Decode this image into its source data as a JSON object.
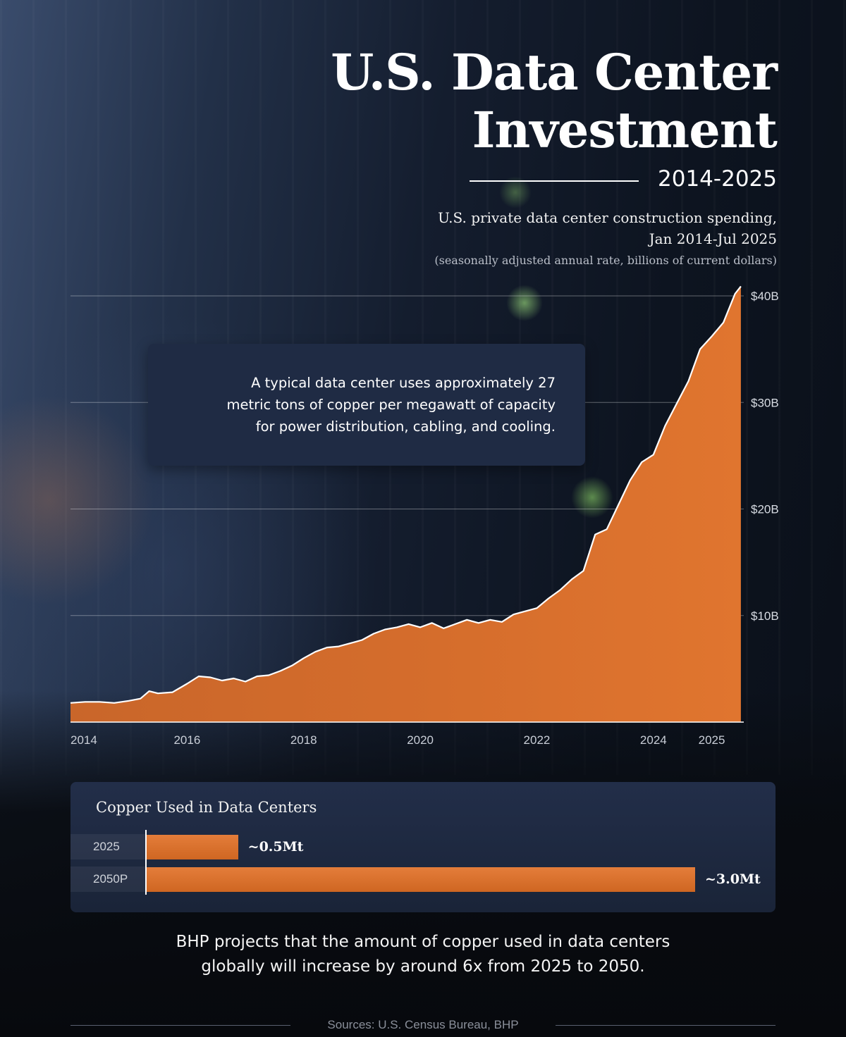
{
  "header": {
    "title_line1": "U.S. Data Center",
    "title_line2": "Investment",
    "period": "2014-2025",
    "subtitle_line1": "U.S. private data center construction spending,",
    "subtitle_line2": "Jan 2014-Jul 2025",
    "subtitle_note": "(seasonally adjusted annual rate, billions of current dollars)"
  },
  "callout": {
    "line1": "A typical data center uses approximately 27",
    "line2": "metric tons of copper per megawatt of capacity",
    "line3": "for power distribution, cabling, and cooling."
  },
  "chart_data": [
    {
      "type": "area",
      "title": "U.S. private data center construction spending, Jan 2014-Jul 2025",
      "ylabel": "",
      "xlabel": "",
      "x_range": [
        2014.0,
        2025.55
      ],
      "ylim": [
        0,
        40
      ],
      "yticks": [
        {
          "value": 10,
          "label": "$10B"
        },
        {
          "value": 20,
          "label": "$20B"
        },
        {
          "value": 30,
          "label": "$30B"
        },
        {
          "value": 40,
          "label": "$40B"
        }
      ],
      "xticks": [
        {
          "value": 2014,
          "label": "2014"
        },
        {
          "value": 2016,
          "label": "2016"
        },
        {
          "value": 2018,
          "label": "2018"
        },
        {
          "value": 2020,
          "label": "2020"
        },
        {
          "value": 2022,
          "label": "2022"
        },
        {
          "value": 2024,
          "label": "2024"
        },
        {
          "value": 2025,
          "label": "2025"
        }
      ],
      "gridlines": "horizontal",
      "color": "#d06a2a",
      "series": [
        {
          "x": [
            2014.0,
            2014.25,
            2014.5,
            2014.75,
            2015.0,
            2015.2,
            2015.35,
            2015.5,
            2015.75,
            2016.0,
            2016.2,
            2016.4,
            2016.6,
            2016.8,
            2017.0,
            2017.2,
            2017.4,
            2017.6,
            2017.8,
            2018.0,
            2018.2,
            2018.4,
            2018.6,
            2018.8,
            2019.0,
            2019.2,
            2019.4,
            2019.6,
            2019.8,
            2020.0,
            2020.2,
            2020.4,
            2020.6,
            2020.8,
            2021.0,
            2021.2,
            2021.4,
            2021.6,
            2021.8,
            2022.0,
            2022.2,
            2022.4,
            2022.6,
            2022.8,
            2023.0,
            2023.2,
            2023.4,
            2023.6,
            2023.8,
            2024.0,
            2024.2,
            2024.4,
            2024.6,
            2024.8,
            2025.0,
            2025.2,
            2025.4,
            2025.5
          ],
          "y": [
            1.8,
            1.9,
            1.9,
            1.8,
            2.0,
            2.2,
            2.9,
            2.7,
            2.8,
            3.6,
            4.3,
            4.2,
            3.9,
            4.1,
            3.8,
            4.3,
            4.4,
            4.8,
            5.3,
            6.0,
            6.6,
            7.0,
            7.1,
            7.4,
            7.7,
            8.3,
            8.7,
            8.9,
            9.2,
            8.9,
            9.3,
            8.8,
            9.2,
            9.6,
            9.3,
            9.6,
            9.4,
            10.1,
            10.4,
            10.7,
            11.6,
            12.4,
            13.4,
            14.2,
            17.6,
            18.1,
            20.4,
            22.7,
            24.4,
            25.1,
            27.8,
            29.9,
            32.0,
            35.0,
            36.2,
            37.5,
            40.2,
            40.9
          ]
        }
      ]
    },
    {
      "type": "bar",
      "orientation": "horizontal",
      "title": "Copper Used in Data Centers",
      "categories": [
        "2025",
        "2050P"
      ],
      "values": [
        0.5,
        3.0
      ],
      "value_labels": [
        "~0.5Mt",
        "~3.0Mt"
      ],
      "color": "#d06a2a"
    }
  ],
  "footer": {
    "line1": "BHP projects that the amount of copper used in data centers",
    "line2": "globally will increase by around 6x from 2025 to 2050.",
    "sources": "Sources: U.S. Census Bureau, BHP"
  }
}
